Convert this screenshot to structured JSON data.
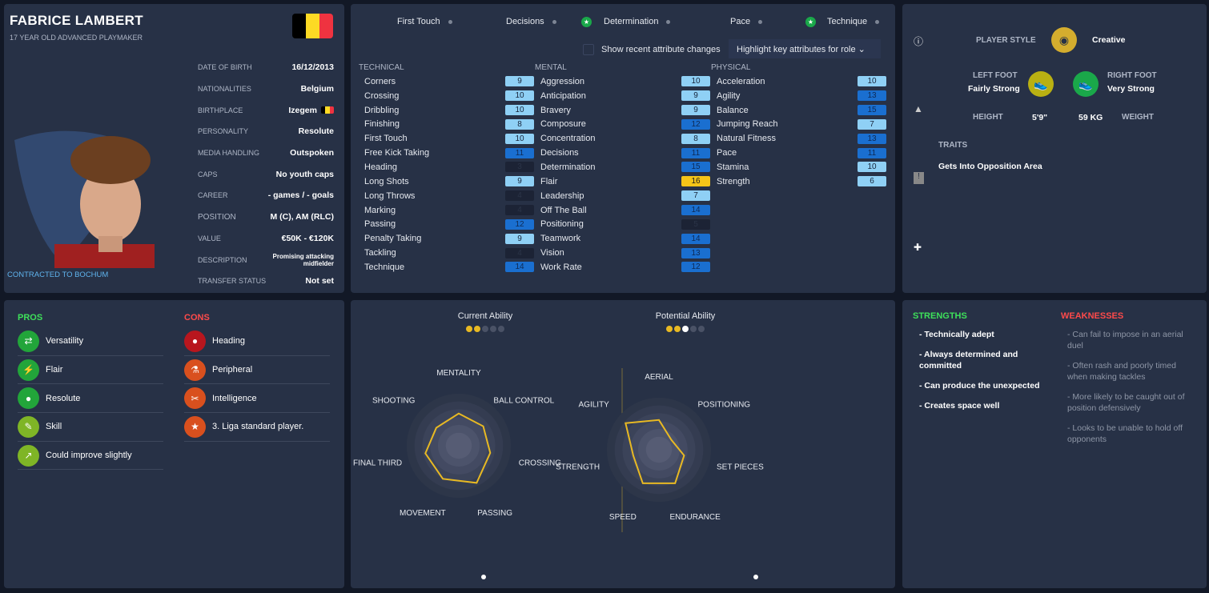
{
  "player": {
    "name": "FABRICE LAMBERT",
    "subtitle": "17 YEAR OLD  ADVANCED PLAYMAKER",
    "contract": "CONTRACTED TO BOCHUM",
    "flag_colors": [
      "#000000",
      "#fdda24",
      "#ef3340"
    ]
  },
  "info": [
    {
      "k": "DATE OF BIRTH",
      "v": "16/12/2013"
    },
    {
      "k": "NATIONALITIES",
      "v": "Belgium"
    },
    {
      "k": "BIRTHPLACE",
      "v": "Izegem"
    },
    {
      "k": "PERSONALITY",
      "v": "Resolute"
    },
    {
      "k": "MEDIA HANDLING",
      "v": "Outspoken"
    },
    {
      "k": "CAPS",
      "v": "No youth caps"
    },
    {
      "k": "CAREER",
      "v": "-  games /     -  goals"
    },
    {
      "k": "POSITION",
      "v": "M (C), AM (RLC)"
    },
    {
      "k": "VALUE",
      "v": "€50K - €120K"
    },
    {
      "k": "DESCRIPTION",
      "v": "Promising attacking midfielder"
    },
    {
      "k": "TRANSFER STATUS",
      "v": "Not set"
    }
  ],
  "highlights": [
    "First Touch",
    "Decisions",
    "Determination",
    "Pace",
    "Technique"
  ],
  "show_changes_label": "Show recent attribute changes",
  "highlight_dropdown": "Highlight key attributes for role",
  "attributes": {
    "technical": {
      "title": "TECHNICAL",
      "items": [
        [
          "Corners",
          9
        ],
        [
          "Crossing",
          10
        ],
        [
          "Dribbling",
          10
        ],
        [
          "Finishing",
          8
        ],
        [
          "First Touch",
          10
        ],
        [
          "Free Kick Taking",
          11
        ],
        [
          "Heading",
          3
        ],
        [
          "Long Shots",
          9
        ],
        [
          "Long Throws",
          4
        ],
        [
          "Marking",
          4
        ],
        [
          "Passing",
          12
        ],
        [
          "Penalty Taking",
          9
        ],
        [
          "Tackling",
          4
        ],
        [
          "Technique",
          14
        ]
      ]
    },
    "mental": {
      "title": "MENTAL",
      "items": [
        [
          "Aggression",
          10
        ],
        [
          "Anticipation",
          9
        ],
        [
          "Bravery",
          9
        ],
        [
          "Composure",
          12
        ],
        [
          "Concentration",
          8
        ],
        [
          "Decisions",
          11
        ],
        [
          "Determination",
          15
        ],
        [
          "Flair",
          16
        ],
        [
          "Leadership",
          7
        ],
        [
          "Off The Ball",
          14
        ],
        [
          "Positioning",
          5
        ],
        [
          "Teamwork",
          14
        ],
        [
          "Vision",
          13
        ],
        [
          "Work Rate",
          12
        ]
      ]
    },
    "physical": {
      "title": "PHYSICAL",
      "items": [
        [
          "Acceleration",
          10
        ],
        [
          "Agility",
          13
        ],
        [
          "Balance",
          15
        ],
        [
          "Jumping Reach",
          7
        ],
        [
          "Natural Fitness",
          13
        ],
        [
          "Pace",
          11
        ],
        [
          "Stamina",
          10
        ],
        [
          "Strength",
          6
        ]
      ]
    }
  },
  "profile": {
    "style_label": "PLAYER STYLE",
    "style": "Creative",
    "left_foot_label": "LEFT FOOT",
    "left_foot": "Fairly Strong",
    "right_foot_label": "RIGHT FOOT",
    "right_foot": "Very Strong",
    "height_label": "HEIGHT",
    "height": "5'9\"",
    "weight": "59 KG",
    "weight_label": "WEIGHT",
    "traits_label": "TRAITS",
    "trait": "Gets Into Opposition Area"
  },
  "pros": {
    "title": "PROS",
    "items": [
      "Versatility",
      "Flair",
      "Resolute",
      "Skill",
      "Could improve slightly"
    ]
  },
  "cons": {
    "title": "CONS",
    "items": [
      "Heading",
      "Peripheral",
      "Intelligence",
      "3. Liga standard player."
    ]
  },
  "chart_data": [
    {
      "type": "radar",
      "title": "Current Ability",
      "stars": 2,
      "max_stars": 5,
      "axes": [
        "MENTALITY",
        "BALL CONTROL",
        "CROSSING",
        "PASSING",
        "MOVEMENT",
        "FINAL THIRD",
        "SHOOTING"
      ],
      "values": [
        0.65,
        0.63,
        0.65,
        0.83,
        0.74,
        0.69,
        0.58
      ],
      "range": [
        0,
        1
      ]
    },
    {
      "type": "radar",
      "title": "Potential Ability",
      "stars": 2.5,
      "max_stars": 5,
      "axes": [
        "AERIAL",
        "POSITIONING",
        "SET PIECES",
        "ENDURANCE",
        "SPEED",
        "STRENGTH",
        "AGILITY"
      ],
      "values": [
        0.6,
        0.32,
        0.52,
        0.75,
        0.75,
        0.53,
        0.86
      ],
      "range": [
        0,
        1
      ]
    }
  ],
  "strengths": {
    "title": "STRENGTHS",
    "items": [
      "- Technically adept",
      "- Always determined and committed",
      "- Can produce the unexpected",
      "- Creates space well"
    ]
  },
  "weaknesses": {
    "title": "WEAKNESSES",
    "items": [
      "- Can fail to impose in an aerial duel",
      "- Often rash and poorly timed when making tackles",
      "- More likely to be caught out of position defensively",
      "- Looks to be unable to hold off opponents"
    ]
  },
  "colors": {
    "gold": "#e8b923",
    "green_strength": "#3ee05a",
    "red_weak": "#ff4a4a",
    "pros_green": "#22a53a",
    "cons_orange": "#d9501e"
  }
}
